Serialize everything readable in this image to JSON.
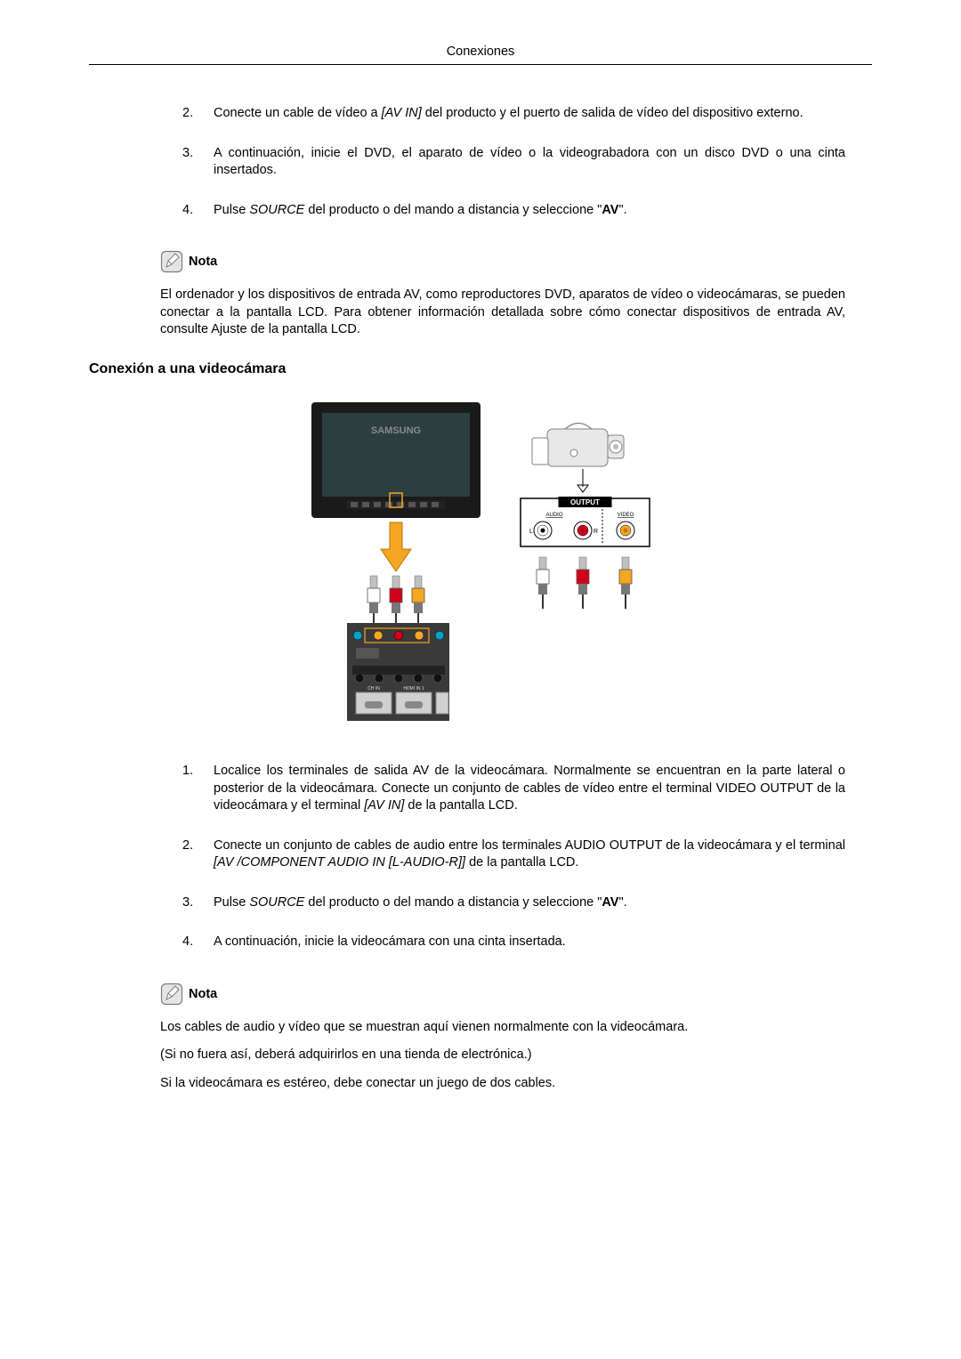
{
  "header": {
    "title": "Conexiones"
  },
  "list1": {
    "items": [
      {
        "num": "2.",
        "parts": [
          {
            "t": "Conecte un cable de vídeo a "
          },
          {
            "t": "[AV IN]",
            "style": "italic"
          },
          {
            "t": " del producto y el puerto de salida de vídeo del dispositivo externo."
          }
        ]
      },
      {
        "num": "3.",
        "parts": [
          {
            "t": "A continuación, inicie el DVD, el aparato de vídeo o la videograbadora con un disco DVD o una cinta insertados."
          }
        ]
      },
      {
        "num": "4.",
        "parts": [
          {
            "t": "Pulse "
          },
          {
            "t": "SOURCE",
            "style": "italic"
          },
          {
            "t": " del producto o del mando a distancia y seleccione \""
          },
          {
            "t": "AV",
            "style": "bold"
          },
          {
            "t": "\"."
          }
        ]
      }
    ]
  },
  "note1": {
    "label": "Nota",
    "text": "El ordenador y los dispositivos de entrada AV, como reproductores DVD, aparatos de vídeo o videocámaras, se pueden conectar a la pantalla LCD. Para obtener información detallada sobre cómo conectar dispositivos de entrada AV, consulte Ajuste de la pantalla LCD."
  },
  "section2": {
    "heading": "Conexión a una videocámara"
  },
  "diagram": {
    "monitor": {
      "body": "#1a1a1a",
      "screen": "#2c3e40",
      "brand": "SAMSUNG",
      "brand_color": "#8a8a8a",
      "arrow_color": "#f5a623"
    },
    "camcorder": {
      "stroke": "#808080",
      "fill": "#e8e8e8"
    },
    "output_panel": {
      "bg": "#ffffff",
      "border": "#000000",
      "title": "OUTPUT",
      "title_bg": "#000000",
      "title_color": "#ffffff",
      "labels": [
        "AUDIO",
        "VIDEO"
      ],
      "lr": [
        "L",
        "R"
      ],
      "jacks": [
        {
          "ring": "#ffffff",
          "center": "#000"
        },
        {
          "ring": "#d0021b",
          "center": "#b00015"
        },
        {
          "ring": "#f5a623",
          "center": "#c07a00"
        }
      ]
    },
    "rca_left": {
      "plugs": [
        {
          "c": "#ffffff"
        },
        {
          "c": "#d0021b"
        },
        {
          "c": "#f5a623"
        }
      ],
      "panel_bg": "#3a3a3a",
      "ports": [
        "#06a0c8",
        "#f5a623",
        "#d0021b",
        "#f5a623",
        "#06a0c8"
      ],
      "sub_panels": true
    },
    "rca_right": {
      "plugs": [
        {
          "c": "#ffffff"
        },
        {
          "c": "#d0021b"
        },
        {
          "c": "#f5a623"
        }
      ]
    }
  },
  "list2": {
    "items": [
      {
        "num": "1.",
        "parts": [
          {
            "t": "Localice los terminales de salida AV de la videocámara. Normalmente se encuentran en la parte lateral o posterior de la videocámara. Conecte un conjunto de cables de vídeo entre el terminal VIDEO OUTPUT de la videocámara y el terminal "
          },
          {
            "t": "[AV IN]",
            "style": "italic"
          },
          {
            "t": " de la pantalla LCD."
          }
        ]
      },
      {
        "num": "2.",
        "parts": [
          {
            "t": "Conecte un conjunto de cables de audio entre los terminales AUDIO OUTPUT de la videocámara y el terminal "
          },
          {
            "t": "[AV /COMPONENT AUDIO IN [L-AUDIO-R]]",
            "style": "italic"
          },
          {
            "t": " de la pantalla LCD."
          }
        ]
      },
      {
        "num": "3.",
        "parts": [
          {
            "t": "Pulse "
          },
          {
            "t": "SOURCE",
            "style": "italic"
          },
          {
            "t": " del producto o del mando a distancia y seleccione \""
          },
          {
            "t": "AV",
            "style": "bold"
          },
          {
            "t": "\"."
          }
        ]
      },
      {
        "num": "4.",
        "parts": [
          {
            "t": "A continuación, inicie la videocámara con una cinta insertada."
          }
        ]
      }
    ]
  },
  "note2": {
    "label": "Nota",
    "paras": [
      "Los cables de audio y vídeo que se muestran aquí vienen normalmente con la videocámara.",
      "(Si no fuera así, deberá adquirirlos en una tienda de electrónica.)",
      "Si la videocámara es estéreo, debe conectar un juego de dos cables."
    ]
  },
  "note_icon": {
    "stroke": "#7d7d7d",
    "fill": "#e5e5e5"
  }
}
